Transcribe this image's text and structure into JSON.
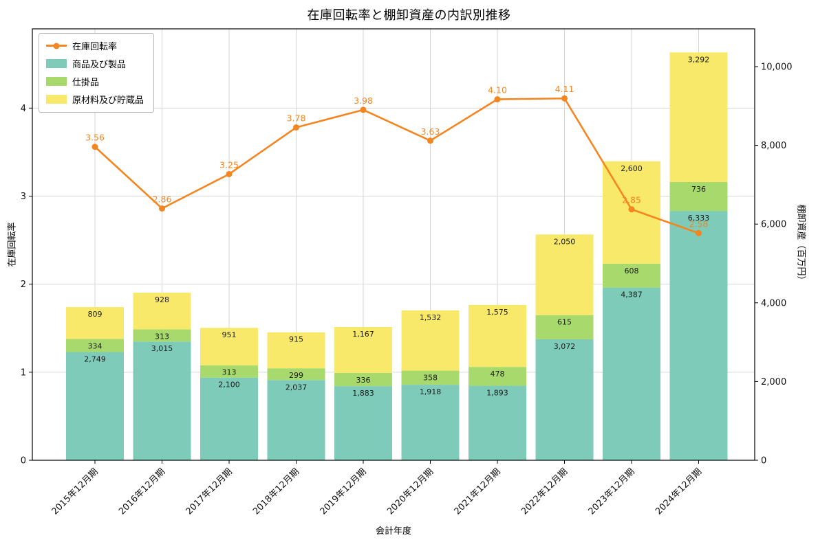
{
  "chart_data": {
    "type": "bar",
    "stacked": true,
    "title": "在庫回転率と棚卸資産の内訳別推移",
    "xlabel": "会計年度",
    "ylabel_left": "在庫回転率",
    "ylabel_right": "棚卸資産（百万円）",
    "categories": [
      "2015年12月期",
      "2016年12月期",
      "2017年12月期",
      "2018年12月期",
      "2019年12月期",
      "2020年12月期",
      "2021年12月期",
      "2022年12月期",
      "2023年12月期",
      "2024年12月期"
    ],
    "series": [
      {
        "name": "商品及び製品",
        "color": "#7dcbb8",
        "values": [
          2749,
          3015,
          2100,
          2037,
          1883,
          1918,
          1893,
          3072,
          4387,
          6333
        ]
      },
      {
        "name": "仕掛品",
        "color": "#a8d96d",
        "values": [
          334,
          313,
          313,
          299,
          336,
          358,
          478,
          615,
          608,
          736
        ]
      },
      {
        "name": "原材料及び貯蔵品",
        "color": "#f8e96b",
        "values": [
          809,
          928,
          951,
          915,
          1167,
          1532,
          1575,
          2050,
          2600,
          3292
        ]
      }
    ],
    "line": {
      "name": "在庫回転率",
      "color": "#f5851f",
      "values": [
        3.56,
        2.86,
        3.25,
        3.78,
        3.98,
        3.63,
        4.1,
        4.11,
        2.85,
        2.58
      ]
    },
    "yticks_left": [
      0,
      1,
      2,
      3,
      4
    ],
    "yticks_right": [
      0,
      2000,
      4000,
      6000,
      8000,
      10000
    ],
    "ylim_left": [
      0,
      4.9
    ],
    "ylim_right": [
      0,
      10960
    ],
    "grid": true,
    "legend_position": "upper left",
    "grid_color": "#d6d6d6",
    "axis_color": "#000000",
    "bar_label_color": "#1a1a1a"
  }
}
